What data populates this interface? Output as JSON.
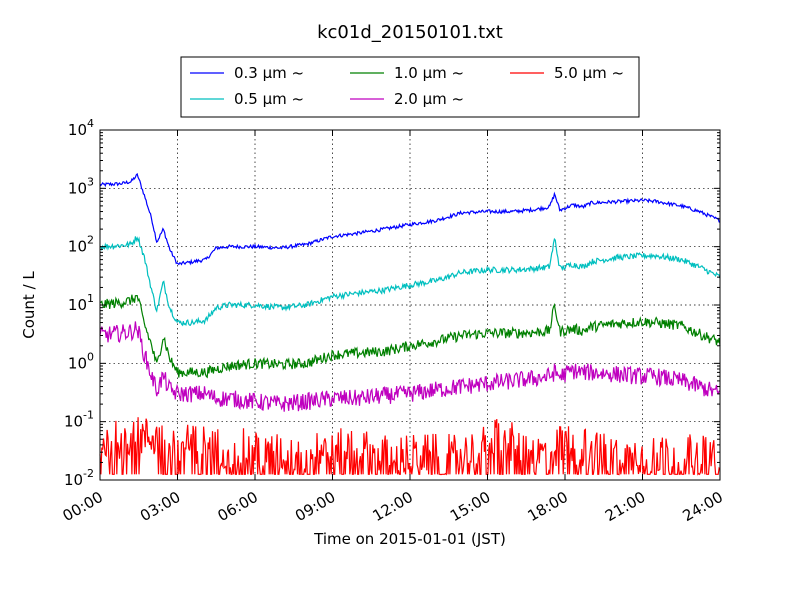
{
  "chart_data": {
    "type": "line",
    "title": "kc01d_20150101.txt",
    "xlabel": "Time on 2015-01-01 (JST)",
    "ylabel": "Count / L",
    "x_range_hours": [
      0,
      24
    ],
    "x_ticks": [
      "00:00",
      "03:00",
      "06:00",
      "09:00",
      "12:00",
      "15:00",
      "18:00",
      "21:00",
      "24:00"
    ],
    "y_scale": "log",
    "ylim": [
      0.01,
      10000
    ],
    "y_ticks": [
      {
        "base": "10",
        "exp": "-2"
      },
      {
        "base": "10",
        "exp": "-1"
      },
      {
        "base": "10",
        "exp": "0"
      },
      {
        "base": "10",
        "exp": "1"
      },
      {
        "base": "10",
        "exp": "2"
      },
      {
        "base": "10",
        "exp": "3"
      },
      {
        "base": "10",
        "exp": "4"
      }
    ],
    "grid": true,
    "legend_position": "top-center",
    "series": [
      {
        "name": "0.3 μm ~",
        "color": "#0000ff",
        "x": [
          0,
          0.8,
          1.2,
          1.45,
          1.7,
          2.0,
          2.2,
          2.45,
          2.7,
          3.0,
          3.6,
          4.1,
          4.5,
          5.0,
          6.0,
          7.0,
          8.0,
          9.0,
          10.0,
          11.0,
          12.0,
          13.0,
          14.0,
          15.0,
          16.0,
          16.8,
          17.4,
          17.6,
          17.8,
          18.3,
          18.7,
          19.0,
          20.0,
          21.0,
          21.5,
          22.5,
          23.2,
          24.0
        ],
        "y": [
          1150,
          1200,
          1300,
          1700,
          800,
          300,
          120,
          200,
          90,
          50,
          55,
          60,
          95,
          100,
          100,
          95,
          110,
          150,
          170,
          200,
          240,
          280,
          380,
          400,
          400,
          430,
          480,
          800,
          420,
          520,
          480,
          560,
          590,
          620,
          600,
          500,
          400,
          280
        ]
      },
      {
        "name": "0.5 μm ~",
        "color": "#00bfbf",
        "x": [
          0,
          0.8,
          1.2,
          1.45,
          1.7,
          2.0,
          2.2,
          2.45,
          2.7,
          3.0,
          3.6,
          4.1,
          4.5,
          5.0,
          6.0,
          7.0,
          8.0,
          9.0,
          10.0,
          11.0,
          12.0,
          13.0,
          14.0,
          15.0,
          16.0,
          16.8,
          17.4,
          17.6,
          17.8,
          18.3,
          18.7,
          19.0,
          20.0,
          21.0,
          21.5,
          22.5,
          23.2,
          24.0
        ],
        "y": [
          100,
          105,
          110,
          150,
          70,
          18,
          8,
          25,
          9,
          5,
          5,
          5.5,
          9,
          10,
          10,
          9,
          10,
          14,
          16,
          18,
          22,
          26,
          36,
          40,
          40,
          42,
          45,
          140,
          42,
          50,
          45,
          55,
          65,
          70,
          70,
          60,
          45,
          30
        ]
      },
      {
        "name": "1.0 μm ~",
        "color": "#008000",
        "x": [
          0,
          0.8,
          1.2,
          1.45,
          1.7,
          2.0,
          2.2,
          2.45,
          2.7,
          3.0,
          3.6,
          4.1,
          4.5,
          5.0,
          6.0,
          7.0,
          8.0,
          9.0,
          10.0,
          11.0,
          12.0,
          13.0,
          14.0,
          15.0,
          16.0,
          16.8,
          17.4,
          17.6,
          17.8,
          18.3,
          18.7,
          19.0,
          20.0,
          21.0,
          21.5,
          22.5,
          23.2,
          24.0
        ],
        "y": [
          10,
          11,
          12,
          14,
          5,
          2,
          0.9,
          3,
          1.2,
          0.7,
          0.7,
          0.7,
          0.8,
          0.9,
          1.0,
          0.95,
          1.0,
          1.4,
          1.5,
          1.6,
          2.0,
          2.4,
          3.0,
          3.3,
          3.3,
          3.4,
          3.6,
          10,
          3.5,
          3.9,
          3.6,
          4.2,
          4.8,
          5.2,
          5.0,
          4.4,
          3.2,
          2.3
        ]
      },
      {
        "name": "2.0 μm ~",
        "color": "#bf00bf",
        "x": [
          0,
          0.8,
          1.2,
          1.45,
          1.7,
          2.0,
          2.2,
          2.45,
          2.7,
          3.0,
          3.6,
          4.1,
          4.5,
          5.0,
          6.0,
          7.0,
          8.0,
          9.0,
          10.0,
          11.0,
          12.0,
          13.0,
          14.0,
          15.0,
          16.0,
          16.8,
          17.4,
          17.6,
          17.8,
          18.3,
          18.7,
          19.0,
          20.0,
          21.0,
          21.5,
          22.5,
          23.2,
          24.0
        ],
        "y": [
          3.0,
          3.3,
          3.5,
          4.0,
          1.5,
          0.6,
          0.35,
          0.6,
          0.35,
          0.3,
          0.3,
          0.3,
          0.25,
          0.25,
          0.22,
          0.2,
          0.22,
          0.25,
          0.25,
          0.28,
          0.3,
          0.35,
          0.4,
          0.45,
          0.5,
          0.55,
          0.6,
          0.7,
          0.6,
          0.75,
          0.7,
          0.7,
          0.65,
          0.6,
          0.6,
          0.5,
          0.4,
          0.3
        ]
      },
      {
        "name": "5.0 μm ~",
        "color": "#ff0000",
        "x": [
          0,
          1,
          2,
          3,
          4,
          5,
          6,
          7,
          8,
          9,
          10,
          11,
          12,
          13,
          14,
          15,
          15.5,
          16,
          17,
          18,
          19,
          20,
          21,
          22,
          23,
          24
        ],
        "y": [
          0.03,
          0.04,
          0.04,
          0.03,
          0.03,
          0.025,
          0.025,
          0.02,
          0.02,
          0.025,
          0.025,
          0.02,
          0.02,
          0.02,
          0.02,
          0.03,
          0.05,
          0.03,
          0.02,
          0.03,
          0.025,
          0.02,
          0.02,
          0.02,
          0.02,
          0.02
        ]
      }
    ]
  }
}
